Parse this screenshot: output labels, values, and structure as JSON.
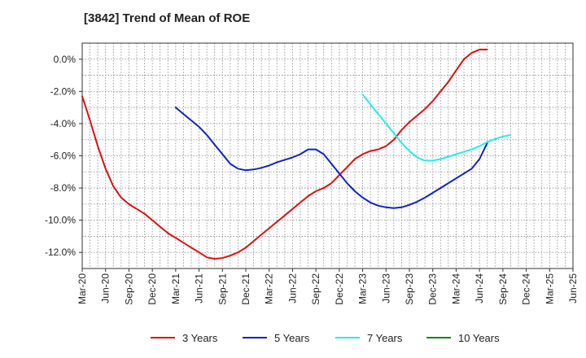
{
  "chart_data": {
    "type": "line",
    "title": "[3842]  Trend of Mean of ROE",
    "xlabel": "",
    "ylabel": "",
    "x_ticks": [
      "Mar-20",
      "Jun-20",
      "Sep-20",
      "Dec-20",
      "Mar-21",
      "Jun-21",
      "Sep-21",
      "Dec-21",
      "Mar-22",
      "Jun-22",
      "Sep-22",
      "Dec-22",
      "Mar-23",
      "Jun-23",
      "Sep-23",
      "Dec-23",
      "Mar-24",
      "Jun-24",
      "Sep-24",
      "Dec-24",
      "Mar-25",
      "Jun-25"
    ],
    "y_ticks": [
      0,
      -2,
      -4,
      -6,
      -8,
      -10,
      -12
    ],
    "y_tick_labels": [
      "0.0%",
      "-2.0%",
      "-4.0%",
      "-6.0%",
      "-8.0%",
      "-10.0%",
      "-12.0%"
    ],
    "ylim": [
      -13,
      1
    ],
    "grid": true,
    "legend_position": "bottom",
    "series": [
      {
        "name": "3 Years",
        "color": "#dd1111",
        "start": "Mar-20",
        "values": [
          -2.3,
          -3.8,
          -5.4,
          -6.8,
          -7.9,
          -8.6,
          -9.0,
          -9.3,
          -9.6,
          -10.0,
          -10.4,
          -10.8,
          -11.1,
          -11.4,
          -11.7,
          -12.0,
          -12.3,
          -12.4,
          -12.35,
          -12.2,
          -12.0,
          -11.7,
          -11.3,
          -10.9,
          -10.5,
          -10.1,
          -9.7,
          -9.3,
          -8.9,
          -8.5,
          -8.2,
          -8.0,
          -7.7,
          -7.2,
          -6.7,
          -6.2,
          -5.9,
          -5.7,
          -5.6,
          -5.4,
          -5.0,
          -4.4,
          -3.9,
          -3.5,
          -3.1,
          -2.6,
          -2.0,
          -1.4,
          -0.7,
          0.0,
          0.4,
          0.6,
          0.6
        ]
      },
      {
        "name": "5 Years",
        "color": "#1122cc",
        "start": "Mar-21",
        "values": [
          -3.0,
          -3.4,
          -3.8,
          -4.2,
          -4.7,
          -5.3,
          -5.9,
          -6.5,
          -6.8,
          -6.9,
          -6.85,
          -6.75,
          -6.6,
          -6.4,
          -6.25,
          -6.1,
          -5.9,
          -5.6,
          -5.6,
          -5.9,
          -6.5,
          -7.1,
          -7.7,
          -8.2,
          -8.6,
          -8.9,
          -9.1,
          -9.2,
          -9.25,
          -9.2,
          -9.05,
          -8.85,
          -8.6,
          -8.3,
          -8.0,
          -7.7,
          -7.4,
          -7.1,
          -6.8,
          -6.2,
          -5.2
        ]
      },
      {
        "name": "7 Years",
        "color": "#22eeee",
        "start": "Mar-23",
        "values": [
          -2.2,
          -2.8,
          -3.4,
          -4.0,
          -4.6,
          -5.2,
          -5.7,
          -6.1,
          -6.3,
          -6.3,
          -6.2,
          -6.05,
          -5.9,
          -5.75,
          -5.6,
          -5.4,
          -5.15,
          -4.95,
          -4.8,
          -4.7
        ]
      },
      {
        "name": "10 Years",
        "color": "#118811",
        "start": "Mar-25",
        "values": []
      }
    ]
  }
}
